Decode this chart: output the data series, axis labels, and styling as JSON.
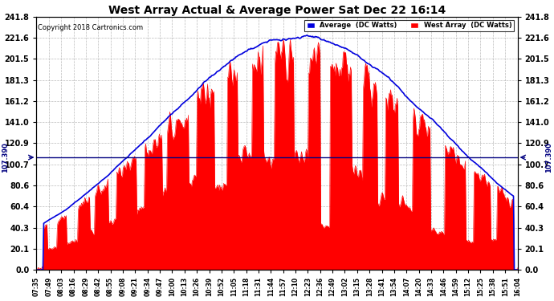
{
  "title": "West Array Actual & Average Power Sat Dec 22 16:14",
  "copyright": "Copyright 2018 Cartronics.com",
  "legend_avg": "Average  (DC Watts)",
  "legend_west": "West Array  (DC Watts)",
  "avg_color": "#0000dd",
  "west_color": "#ff0000",
  "background_color": "#ffffff",
  "ylim": [
    0.0,
    241.8
  ],
  "yticks": [
    0.0,
    20.1,
    40.3,
    60.4,
    80.6,
    100.7,
    120.9,
    141.0,
    161.2,
    181.3,
    201.5,
    221.6,
    241.8
  ],
  "avg_line": 107.39,
  "avg_line_color": "#000080",
  "grid_color": "#aaaaaa",
  "fill_color": "#ff0000",
  "xtick_labels": [
    "07:35",
    "07:49",
    "08:03",
    "08:16",
    "08:29",
    "08:42",
    "08:55",
    "09:08",
    "09:21",
    "09:34",
    "09:47",
    "10:00",
    "10:13",
    "10:26",
    "10:39",
    "10:52",
    "11:05",
    "11:18",
    "11:31",
    "11:44",
    "11:57",
    "12:10",
    "12:23",
    "12:36",
    "12:49",
    "13:02",
    "13:15",
    "13:28",
    "13:41",
    "13:54",
    "14:07",
    "14:20",
    "14:33",
    "14:46",
    "14:59",
    "15:12",
    "15:25",
    "15:38",
    "15:51",
    "16:04"
  ],
  "peak_hour": 12.2,
  "sigma": 2.5,
  "max_power": 232.0,
  "n_dense": 600,
  "noise_seed": 17
}
